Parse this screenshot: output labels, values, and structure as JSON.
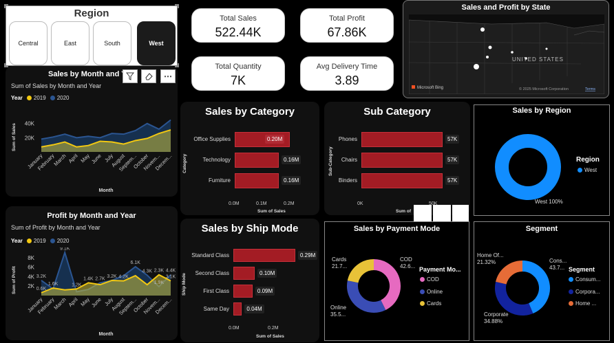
{
  "region_slicer": {
    "title": "Region",
    "options": [
      "Central",
      "East",
      "South",
      "West"
    ],
    "selected": "West"
  },
  "kpis": [
    {
      "label": "Total Sales",
      "value": "522.44K"
    },
    {
      "label": "Total Profit",
      "value": "67.86K"
    },
    {
      "label": "Total Quantity",
      "value": "7K"
    },
    {
      "label": "Avg Delivery Time",
      "value": "3.89"
    }
  ],
  "map": {
    "title": "Sales and Profit by State",
    "country_label": "UNITED STATES",
    "bing_label": "Microsoft Bing",
    "copyright": "© 2025 Microsoft Corporation",
    "terms": "Terms"
  },
  "visual_toolbar": {
    "filter_icon": "filter-icon",
    "eraser_icon": "eraser-icon",
    "more": "⋯"
  },
  "sales_by_month": {
    "title": "Sales by Month and Year",
    "subtitle": "Sum of Sales by Month and Year",
    "legend_title": "Year",
    "legend": [
      {
        "name": "2019",
        "color": "#f2c811"
      },
      {
        "name": "2020",
        "color": "#1f3f6e"
      }
    ],
    "xlabel": "Month",
    "ylabel": "Sum of Sales",
    "y_ticks": [
      "40K",
      "20K"
    ],
    "months": [
      "January",
      "February",
      "March",
      "April",
      "May",
      "June",
      "July",
      "August",
      "Septem...",
      "October",
      "Novem...",
      "Decem..."
    ]
  },
  "profit_by_month": {
    "title": "Profit by Month and Year",
    "subtitle": "Sum of Profit by Month and Year",
    "legend_title": "Year",
    "legend": [
      {
        "name": "2019",
        "color": "#f2c811"
      },
      {
        "name": "2020",
        "color": "#1f3f6e"
      }
    ],
    "xlabel": "Month",
    "ylabel": "Sum of Profit",
    "y_ticks": [
      "8K",
      "6K",
      "4K",
      "2K"
    ],
    "months": [
      "January",
      "February",
      "March",
      "April",
      "May",
      "June",
      "July",
      "August",
      "Septem...",
      "October",
      "Novem...",
      "Decem..."
    ],
    "data_labels": [
      "3.2K",
      "0.6K",
      "9.1K",
      "1.6K",
      "1.2K",
      "1.4K",
      "2.7K",
      "3.2K",
      "4.2K",
      "6.1K",
      "4.3K",
      "2.3K",
      "1.9K",
      "4.4K",
      "3.1K"
    ]
  },
  "sales_by_category": {
    "title": "Sales by Category",
    "ylabel": "Category",
    "xlabel": "Sum of Sales",
    "x_ticks": [
      "0.0M",
      "0.1M",
      "0.2M"
    ]
  },
  "sub_category": {
    "title": "Sub Category",
    "ylabel": "Sub-Category",
    "xlabel": "Sum of",
    "x_ticks": [
      "0K",
      "50K"
    ]
  },
  "sales_by_region": {
    "title": "Sales by Region",
    "legend_title": "Region",
    "legend": [
      {
        "name": "West",
        "color": "#118dff"
      }
    ],
    "slice_label": "West 100%"
  },
  "sales_by_ship_mode": {
    "title": "Sales by Ship Mode",
    "ylabel": "Ship Mode",
    "xlabel": "Sum of Sales",
    "x_ticks": [
      "0.0M",
      "0.2M"
    ]
  },
  "sales_by_payment": {
    "title": "Sales by Payment Mode",
    "legend_title": "Payment Mo...",
    "labels": {
      "cod": [
        "COD",
        "42.6..."
      ],
      "cards": [
        "Cards",
        "21.7..."
      ],
      "online": [
        "Online",
        "35.5..."
      ]
    }
  },
  "segment": {
    "title": "Segment",
    "legend_title": "Segment",
    "labels": {
      "home": [
        "Home Of...",
        "21.32%"
      ],
      "cons": [
        "Cons...",
        "43.7..."
      ],
      "corp": [
        "Corporate",
        "34.88%"
      ]
    }
  },
  "chart_data": [
    {
      "type": "area",
      "title": "Sales by Month and Year",
      "xlabel": "Month",
      "ylabel": "Sum of Sales",
      "categories": [
        "January",
        "February",
        "March",
        "April",
        "May",
        "June",
        "July",
        "August",
        "Septem...",
        "October",
        "Novem...",
        "Decem..."
      ],
      "ylim": [
        0,
        60000
      ],
      "series": [
        {
          "name": "2019",
          "values": [
            7000,
            10000,
            14000,
            7000,
            9000,
            15000,
            14000,
            11000,
            16000,
            19000,
            26000,
            31000
          ]
        },
        {
          "name": "2020",
          "values": [
            18000,
            21000,
            25000,
            20000,
            22000,
            20000,
            26000,
            25000,
            30000,
            40000,
            32000,
            45000
          ]
        }
      ]
    },
    {
      "type": "area",
      "title": "Profit by Month and Year",
      "xlabel": "Month",
      "ylabel": "Sum of Profit",
      "categories": [
        "January",
        "February",
        "March",
        "April",
        "May",
        "June",
        "July",
        "August",
        "Septem...",
        "October",
        "Novem...",
        "Decem..."
      ],
      "ylim": [
        0,
        9000
      ],
      "series": [
        {
          "name": "2019",
          "values": [
            600,
            1600,
            1200,
            1400,
            2700,
            2300,
            3200,
            3100,
            4200,
            2300,
            4400,
            3100
          ]
        },
        {
          "name": "2020",
          "values": [
            3200,
            1400,
            9100,
            800,
            1300,
            2700,
            3200,
            4200,
            6100,
            4300,
            1900,
            4400
          ]
        }
      ]
    },
    {
      "type": "bar",
      "title": "Sales by Category",
      "xlabel": "Sum of Sales",
      "ylabel": "Category",
      "categories": [
        "Office Supplies",
        "Technology",
        "Furniture"
      ],
      "values": [
        0.2,
        0.16,
        0.16
      ],
      "value_labels": [
        "0.20M",
        "0.16M",
        "0.16M"
      ],
      "xlim": [
        0,
        0.2
      ]
    },
    {
      "type": "bar",
      "title": "Sub Category",
      "xlabel": "Sum of",
      "ylabel": "Sub-Category",
      "categories": [
        "Phones",
        "Chairs",
        "Binders"
      ],
      "values": [
        57,
        57,
        57
      ],
      "value_labels": [
        "57K",
        "57K",
        "57K"
      ],
      "xlim": [
        0,
        50
      ]
    },
    {
      "type": "pie",
      "title": "Sales by Region",
      "categories": [
        "West"
      ],
      "values": [
        100
      ]
    },
    {
      "type": "bar",
      "title": "Sales by Ship Mode",
      "xlabel": "Sum of Sales",
      "ylabel": "Ship Mode",
      "categories": [
        "Standard Class",
        "Second Class",
        "First Class",
        "Same Day"
      ],
      "values": [
        0.29,
        0.1,
        0.09,
        0.04
      ],
      "value_labels": [
        "0.29M",
        "0.10M",
        "0.09M",
        "0.04M"
      ],
      "xlim": [
        0,
        0.2
      ]
    },
    {
      "type": "pie",
      "title": "Sales by Payment Mode",
      "categories": [
        "COD",
        "Online",
        "Cards"
      ],
      "values": [
        42.6,
        35.5,
        21.7
      ],
      "colors": [
        "#e66ac0",
        "#3a4db5",
        "#e8c238"
      ]
    },
    {
      "type": "pie",
      "title": "Segment",
      "categories": [
        "Consum...",
        "Corpora...",
        "Home ..."
      ],
      "values": [
        43.7,
        34.88,
        21.32
      ],
      "colors": [
        "#118dff",
        "#12239e",
        "#e66c37"
      ]
    }
  ]
}
